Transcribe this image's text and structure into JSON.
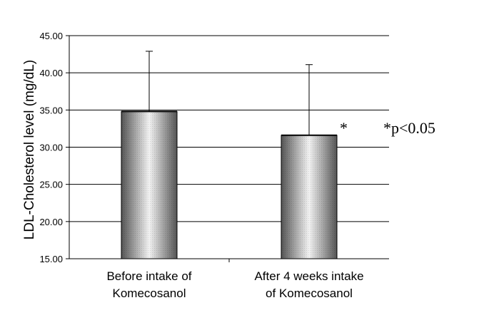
{
  "chart_data": {
    "type": "bar",
    "title": "",
    "xlabel": "",
    "ylabel": "LDL-Cholesterol level (mg/dL)",
    "ylim": [
      15.0,
      45.0
    ],
    "yticks": [
      "15.00",
      "20.00",
      "25.00",
      "30.00",
      "35.00",
      "40.00",
      "45.00"
    ],
    "categories": [
      [
        "Before intake of",
        "Komecosanol"
      ],
      [
        "After 4 weeks intake",
        "of Komecosanol"
      ]
    ],
    "values": [
      34.8,
      31.6
    ],
    "error_upper": [
      8.1,
      9.5
    ],
    "grid": true,
    "legend": "none",
    "significance_marker": "*",
    "significance_note": "*p<0.05",
    "colors": {
      "bar_dark": "#555555",
      "bar_light": "#f2f2f2",
      "axis": "#000000"
    }
  }
}
